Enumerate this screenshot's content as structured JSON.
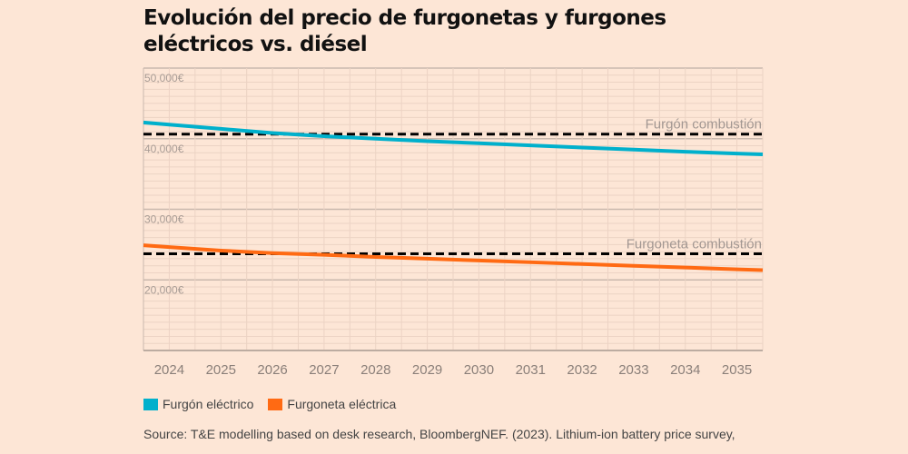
{
  "title": "Evolución del precio de furgonetas y furgones eléctricos vs. diésel",
  "chart_data": {
    "type": "line",
    "title": "Evolución del precio de furgonetas y furgones eléctricos vs. diésel",
    "x": [
      2024,
      2025,
      2026,
      2027,
      2028,
      2029,
      2030,
      2031,
      2032,
      2033,
      2034,
      2035
    ],
    "x_tick_labels": [
      "2024",
      "2025",
      "2026",
      "2027",
      "2028",
      "2029",
      "2030",
      "2031",
      "2032",
      "2033",
      "2034",
      "2035"
    ],
    "y_tick_labels": [
      "50,000€",
      "40,000€",
      "30,000€",
      "20,000€"
    ],
    "y_ticks": [
      50000,
      40000,
      30000,
      20000
    ],
    "ylim": [
      10000,
      50000
    ],
    "xlim": [
      2023.5,
      2035.5
    ],
    "grid": true,
    "series": [
      {
        "name": "Furgón eléctrico",
        "color": "#00b0cc",
        "values": [
          42000,
          41400,
          40800,
          40350,
          40000,
          39650,
          39350,
          39050,
          38750,
          38450,
          38150,
          37900
        ]
      },
      {
        "name": "Furgoneta eléctrica",
        "color": "#ff6a13",
        "values": [
          24650,
          24150,
          23800,
          23550,
          23250,
          23000,
          22750,
          22500,
          22250,
          22000,
          21750,
          21500
        ]
      }
    ],
    "reference_lines": [
      {
        "label": "Furgón combustión",
        "value": 40650,
        "color": "#000000"
      },
      {
        "label": "Furgoneta combustión",
        "value": 23700,
        "color": "#000000"
      }
    ],
    "legend_placement": "bottom-left"
  },
  "legend": [
    {
      "label": "Furgón eléctrico",
      "color": "#00b0cc"
    },
    {
      "label": "Furgoneta eléctrica",
      "color": "#ff6a13"
    }
  ],
  "source": "Source: T&E modelling based on desk research, BloombergNEF. (2023). Lithium-ion battery price survey,"
}
